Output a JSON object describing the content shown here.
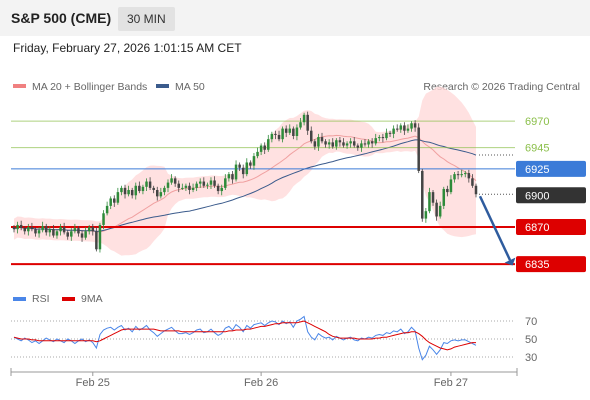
{
  "header": {
    "symbol": "S&P 500 (CME)",
    "timeframe": "30 MIN",
    "datetime": "Friday, February 27, 2026 1:01:15 AM CET"
  },
  "legend": {
    "items": [
      {
        "label": "MA 20 + Bollinger Bands",
        "color": "#f08080"
      },
      {
        "label": "MA 50",
        "color": "#3b5b8c"
      }
    ],
    "credit": "Research © 2026 Trading Central"
  },
  "colors": {
    "support": "#dd0000",
    "pivot": "#3b7bd8",
    "resistance": "#8bbf4a",
    "last": "#333333",
    "bull_candle": "#2e8b3a",
    "bear_candle": "#444444",
    "bollinger_band": "#ffd9d9",
    "ma20": "#f0a0a0",
    "ma50": "#3b5b8c",
    "rsi": "#4a86e8",
    "rsi_ma": "#dd0000",
    "arrow": "#2f5c9e"
  },
  "chart_data": [
    {
      "type": "candlestick",
      "name": "price",
      "ylim": [
        6820,
        6990
      ],
      "levels": [
        {
          "label": "6970",
          "value": 6970,
          "kind": "resistance"
        },
        {
          "label": "6945",
          "value": 6945,
          "kind": "resistance"
        },
        {
          "label": "6925",
          "value": 6925,
          "kind": "pivot"
        },
        {
          "label": "6900",
          "value": 6900,
          "kind": "last"
        },
        {
          "label": "6870",
          "value": 6870,
          "kind": "support"
        },
        {
          "label": "6835",
          "value": 6835,
          "kind": "support"
        }
      ],
      "close": [
        6868,
        6872,
        6869,
        6866,
        6870,
        6868,
        6864,
        6867,
        6871,
        6865,
        6868,
        6862,
        6866,
        6870,
        6865,
        6861,
        6866,
        6869,
        6864,
        6860,
        6866,
        6870,
        6866,
        6849,
        6872,
        6883,
        6890,
        6897,
        6893,
        6903,
        6907,
        6901,
        6905,
        6900,
        6909,
        6904,
        6908,
        6913,
        6907,
        6905,
        6899,
        6903,
        6907,
        6912,
        6916,
        6911,
        6907,
        6907,
        6909,
        6905,
        6907,
        6911,
        6913,
        6909,
        6910,
        6914,
        6909,
        6904,
        6907,
        6916,
        6920,
        6915,
        6929,
        6926,
        6920,
        6931,
        6928,
        6937,
        6941,
        6947,
        6943,
        6953,
        6958,
        6957,
        6953,
        6963,
        6959,
        6963,
        6956,
        6964,
        6969,
        6976,
        6961,
        6951,
        6946,
        6955,
        6951,
        6948,
        6950,
        6946,
        6952,
        6950,
        6947,
        6949,
        6951,
        6947,
        6945,
        6949,
        6948,
        6951,
        6949,
        6954,
        6955,
        6954,
        6959,
        6958,
        6963,
        6962,
        6966,
        6961,
        6963,
        6968,
        6964,
        6923,
        6878,
        6885,
        6903,
        6893,
        6880,
        6890,
        6906,
        6903,
        6915,
        6920,
        6919,
        6920,
        6921,
        6916,
        6909,
        6901
      ],
      "rsi": {
        "name": "RSI",
        "ma_name": "9MA",
        "ticks": [
          70,
          50,
          30
        ],
        "ylim": [
          20,
          80
        ],
        "rsi": [
          52,
          50,
          48,
          51,
          49,
          46,
          48,
          45,
          48,
          51,
          49,
          47,
          50,
          48,
          46,
          50,
          48,
          45,
          48,
          50,
          47,
          49,
          46,
          40,
          55,
          60,
          62,
          63,
          60,
          63,
          65,
          60,
          62,
          58,
          64,
          60,
          62,
          65,
          60,
          57,
          53,
          56,
          59,
          61,
          63,
          59,
          56,
          56,
          57,
          55,
          57,
          60,
          61,
          57,
          58,
          61,
          57,
          54,
          56,
          62,
          64,
          60,
          66,
          63,
          58,
          65,
          62,
          66,
          67,
          68,
          65,
          68,
          70,
          69,
          66,
          70,
          67,
          69,
          63,
          70,
          72,
          75,
          58,
          52,
          49,
          56,
          53,
          51,
          52,
          49,
          53,
          51,
          49,
          51,
          52,
          49,
          48,
          51,
          50,
          52,
          51,
          54,
          55,
          54,
          57,
          56,
          59,
          58,
          61,
          56,
          58,
          63,
          59,
          40,
          27,
          32,
          42,
          38,
          33,
          38,
          46,
          45,
          48,
          49,
          48,
          49,
          49,
          47,
          45,
          43
        ],
        "ma": [
          52,
          51,
          50,
          50,
          50,
          49,
          49,
          48,
          48,
          48,
          48,
          48,
          48,
          48,
          48,
          48,
          48,
          48,
          48,
          48,
          48,
          48,
          48,
          47,
          48,
          50,
          52,
          54,
          56,
          58,
          60,
          61,
          61,
          61,
          61,
          61,
          61,
          61,
          61,
          61,
          60,
          59,
          59,
          59,
          59,
          59,
          59,
          58,
          58,
          58,
          58,
          58,
          58,
          58,
          58,
          58,
          58,
          58,
          58,
          58,
          59,
          59,
          60,
          60,
          60,
          61,
          61,
          62,
          63,
          64,
          64,
          65,
          66,
          67,
          67,
          68,
          68,
          68,
          68,
          68,
          69,
          70,
          68,
          66,
          64,
          62,
          60,
          58,
          55,
          53,
          52,
          51,
          51,
          51,
          51,
          51,
          50,
          50,
          50,
          50,
          50,
          51,
          51,
          52,
          52,
          53,
          54,
          55,
          56,
          57,
          57,
          58,
          58,
          56,
          53,
          49,
          46,
          44,
          42,
          40,
          39,
          38,
          39,
          41,
          42,
          43,
          44,
          45,
          46,
          46
        ]
      },
      "xticks": [
        {
          "label": "Feb 25",
          "index": 22
        },
        {
          "label": "Feb 26",
          "index": 69
        },
        {
          "label": "Feb 27",
          "index": 122
        }
      ]
    }
  ]
}
